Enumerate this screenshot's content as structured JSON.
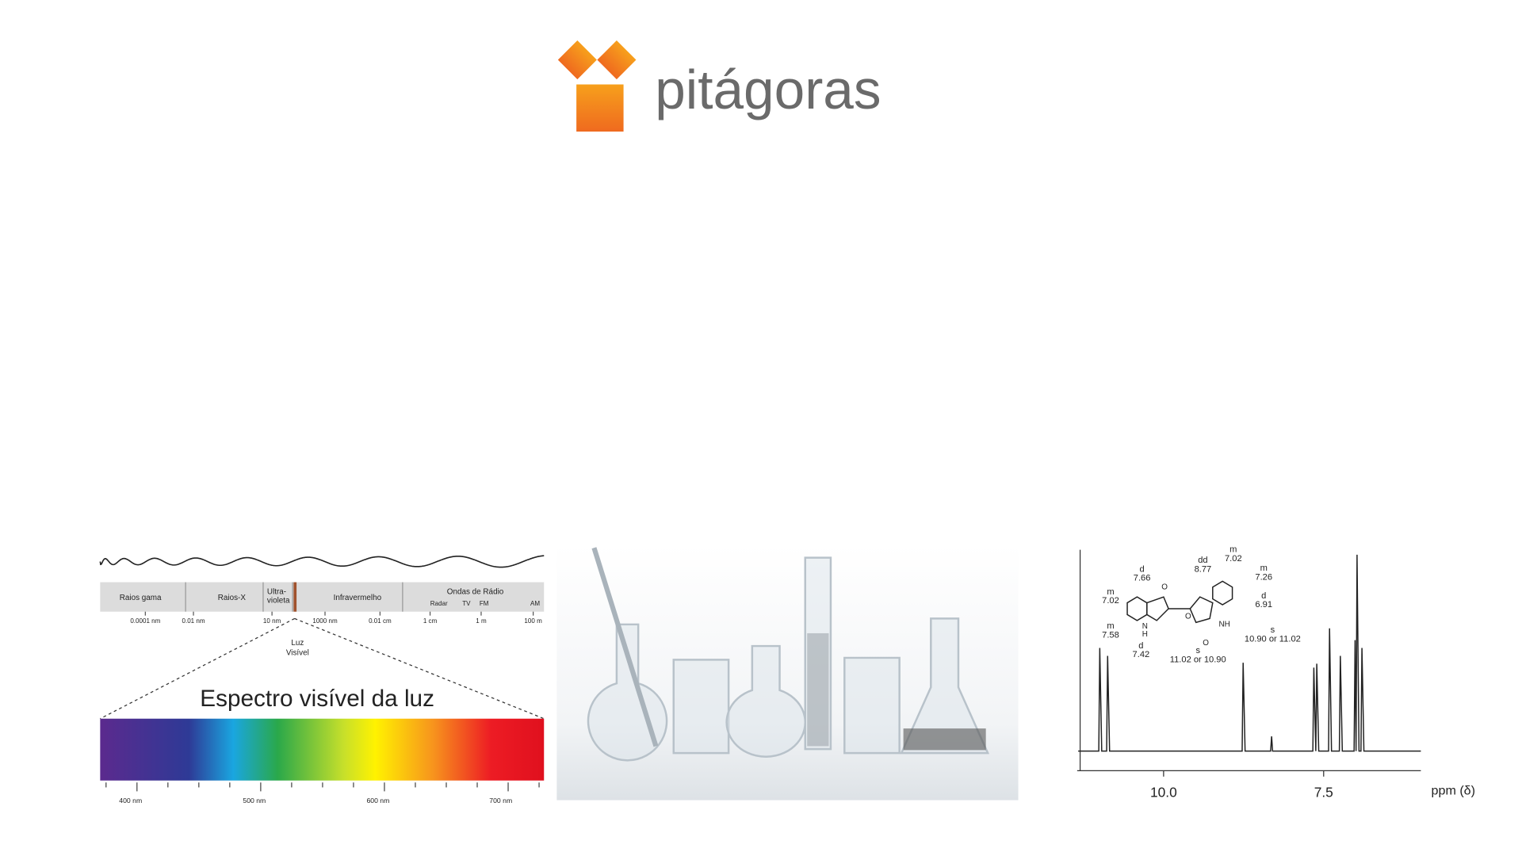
{
  "header": {
    "logo_text": "pitágoras"
  },
  "spectrum": {
    "bands": [
      [
        "Raios gama"
      ],
      [
        "Raios-X"
      ],
      [
        "Ultra-",
        "violeta"
      ],
      [
        "Infravermelho"
      ],
      [
        "Ondas de Rádio"
      ]
    ],
    "radio_subbands": [
      "Radar",
      "TV",
      "FM",
      "AM"
    ],
    "scale": [
      "0.0001 nm",
      "0.01 nm",
      "10 nm",
      "1000 nm",
      "0.01 cm",
      "1 cm",
      "1 m",
      "100 m"
    ],
    "visible_label": [
      "Luz",
      "Visível"
    ],
    "title": "Espectro visível da luz",
    "nm_ticks": [
      "400 nm",
      "500 nm",
      "600 nm",
      "700 nm"
    ]
  },
  "nmr": {
    "x_ticks": [
      "10.0",
      "7.5"
    ],
    "x_label": "ppm (δ)",
    "annotations": [
      [
        "m",
        "7.02"
      ],
      [
        "m",
        "7.26"
      ],
      [
        "dd",
        "8.77"
      ],
      [
        "d",
        "7.66"
      ],
      [
        "m",
        "7.02"
      ],
      [
        "d",
        "6.91"
      ],
      [
        "m",
        "7.58"
      ],
      [
        "d",
        "7.42"
      ],
      [
        "s",
        "11.02 or 10.90"
      ],
      [
        "s",
        "10.90 or 11.02"
      ]
    ],
    "atoms": [
      "O",
      "N",
      "H",
      "O",
      "NH",
      "O"
    ]
  }
}
